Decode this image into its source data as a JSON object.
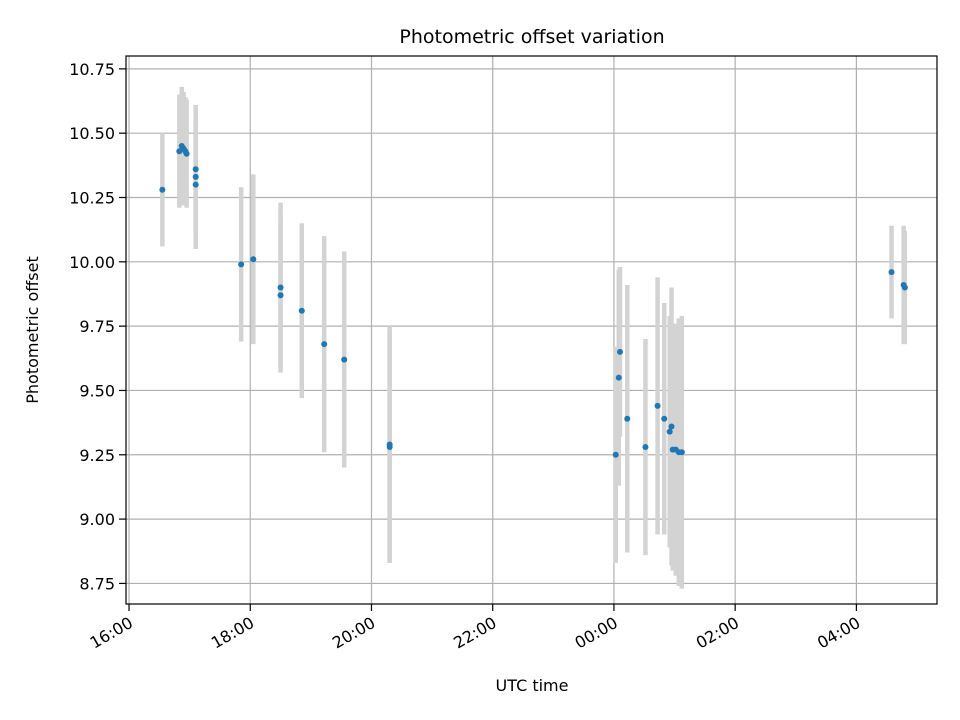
{
  "chart_data": {
    "type": "scatter",
    "title": "Photometric offset variation",
    "xlabel": "UTC time",
    "ylabel": "Photometric offset",
    "x_ticks": [
      "16:00",
      "18:00",
      "20:00",
      "22:00",
      "00:00",
      "02:00",
      "04:00"
    ],
    "x_tick_hours": [
      16,
      18,
      20,
      22,
      24,
      26,
      28
    ],
    "y_ticks": [
      "8.75",
      "9.00",
      "9.25",
      "9.50",
      "9.75",
      "10.00",
      "10.25",
      "10.50",
      "10.75"
    ],
    "y_tick_values": [
      8.75,
      9.0,
      9.25,
      9.5,
      9.75,
      10.0,
      10.25,
      10.5,
      10.75
    ],
    "xlim_hours": [
      15.95,
      29.33
    ],
    "ylim": [
      8.67,
      10.8
    ],
    "grid": true,
    "point_color": "#1f77b4",
    "errorbar_color": "#d3d3d3",
    "series": [
      {
        "x_hours": [
          16.55,
          16.83,
          16.87,
          16.9,
          16.93,
          16.95,
          17.1,
          17.1,
          17.1,
          17.85,
          18.05,
          18.5,
          18.5,
          18.85,
          19.22,
          19.55,
          20.3,
          20.3,
          24.03,
          24.08,
          24.1,
          24.22,
          24.52,
          24.72,
          24.83,
          24.92,
          24.95,
          24.97,
          25.02,
          25.07,
          25.12,
          28.58,
          28.78,
          28.8
        ],
        "y": [
          10.28,
          10.43,
          10.45,
          10.44,
          10.43,
          10.42,
          10.36,
          10.33,
          10.3,
          9.99,
          10.01,
          9.9,
          9.87,
          9.81,
          9.68,
          9.62,
          9.29,
          9.28,
          9.25,
          9.55,
          9.65,
          9.39,
          9.28,
          9.44,
          9.39,
          9.34,
          9.36,
          9.27,
          9.27,
          9.26,
          9.26,
          9.96,
          9.91,
          9.9
        ],
        "y_err": [
          0.22,
          0.22,
          0.23,
          0.22,
          0.21,
          0.21,
          0.25,
          0.23,
          0.25,
          0.3,
          0.33,
          0.33,
          0.28,
          0.34,
          0.42,
          0.42,
          0.46,
          0.45,
          0.42,
          0.42,
          0.33,
          0.52,
          0.42,
          0.5,
          0.45,
          0.45,
          0.54,
          0.47,
          0.49,
          0.52,
          0.53,
          0.18,
          0.23,
          0.22
        ]
      }
    ]
  }
}
